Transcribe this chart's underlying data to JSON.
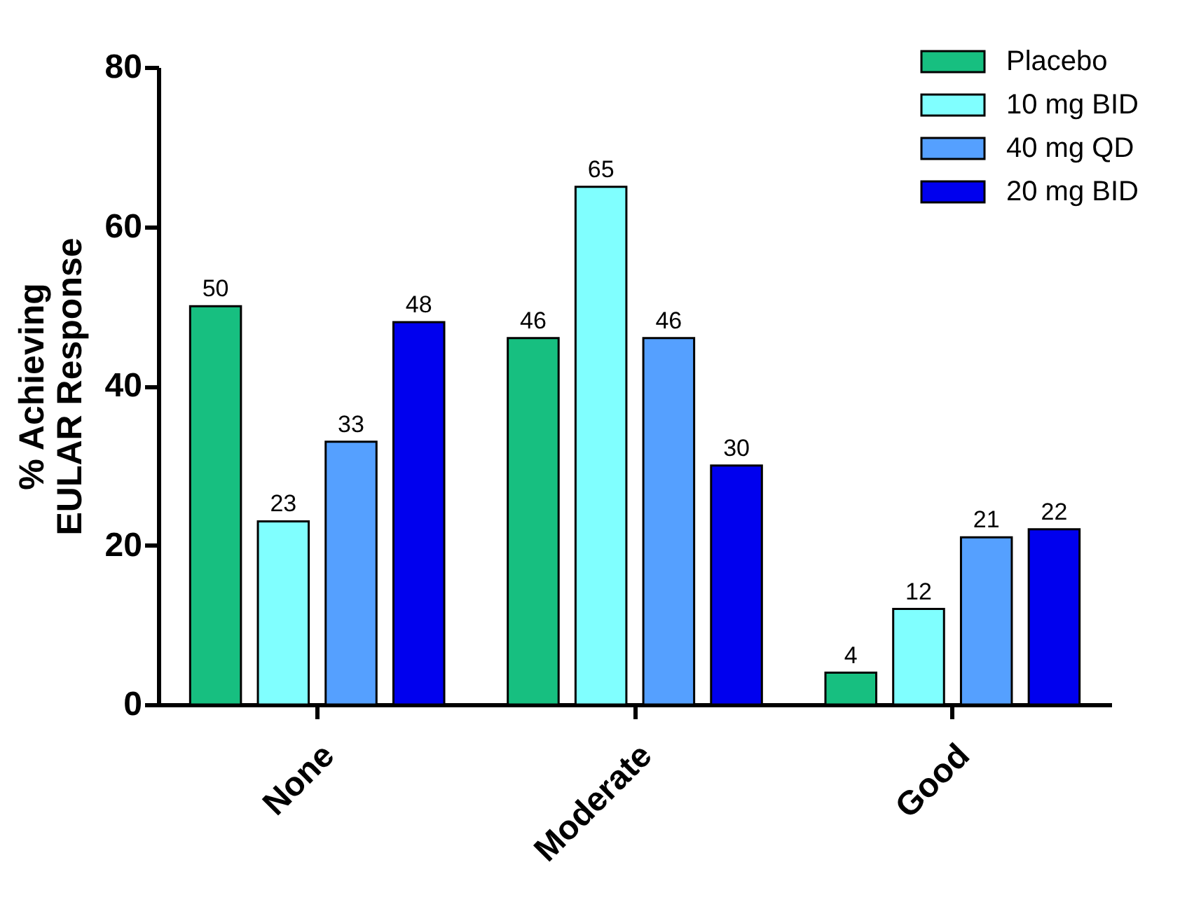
{
  "chart_data": {
    "type": "bar",
    "ylabel": "% Achieving\nEULAR Response",
    "categories": [
      "None",
      "Moderate",
      "Good"
    ],
    "series": [
      {
        "name": "Placebo",
        "color": "#17bf80",
        "values": [
          50,
          46,
          4
        ]
      },
      {
        "name": "10 mg BID",
        "color": "#80ffff",
        "values": [
          23,
          65,
          12
        ]
      },
      {
        "name": "40 mg QD",
        "color": "#55a0ff",
        "values": [
          33,
          46,
          21
        ]
      },
      {
        "name": "20 mg BID",
        "color": "#0000ee",
        "values": [
          48,
          30,
          22
        ]
      }
    ],
    "ylim": [
      0,
      80
    ],
    "yticks": [
      0,
      20,
      40,
      60,
      80
    ],
    "grid": false,
    "legend": "top right",
    "data_labels": true
  }
}
